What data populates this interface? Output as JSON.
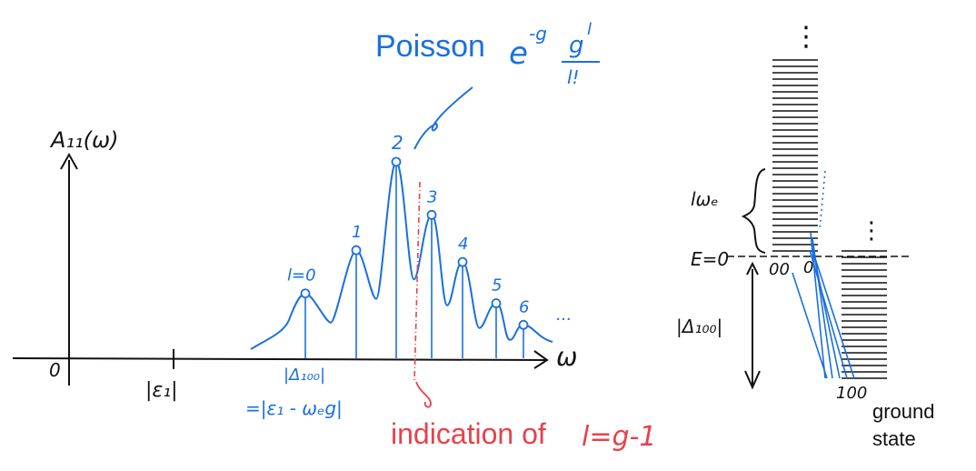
{
  "title": {
    "poisson_word": "Poisson",
    "exp_base": "e",
    "exp_power": "-g",
    "frac_num_base": "g",
    "frac_num_power": "l",
    "frac_den": "l!"
  },
  "spectrum": {
    "y_axis_label": "A₁₁(ω)",
    "x_axis_label": "ω",
    "origin_label": "0",
    "e1_label": "|ε₁|",
    "delta_label": "|Δ₁₀₀|",
    "delta_eq_label": "=|ε₁ - ωₑg|",
    "peaks": [
      "l=0",
      "1",
      "2",
      "3",
      "4",
      "5",
      "6"
    ],
    "peak_heights": [
      0.33,
      0.55,
      1.0,
      0.73,
      0.49,
      0.28,
      0.17
    ],
    "ellipsis": "...",
    "indication_text": "indication of",
    "indication_math": "l=g-1"
  },
  "ladder": {
    "vdots": "⋮",
    "spacing_label": "lωₑ",
    "energy_label": "E=0",
    "state_00_label": "00",
    "state_0_label": "0",
    "gap_label": "|Δ₁₀₀|",
    "state_100_label": "100",
    "ground_line1": "ground",
    "ground_line2": "state"
  },
  "colors": {
    "blue": "#1a6fe0",
    "red": "#e8414a",
    "ink": "#111111"
  }
}
